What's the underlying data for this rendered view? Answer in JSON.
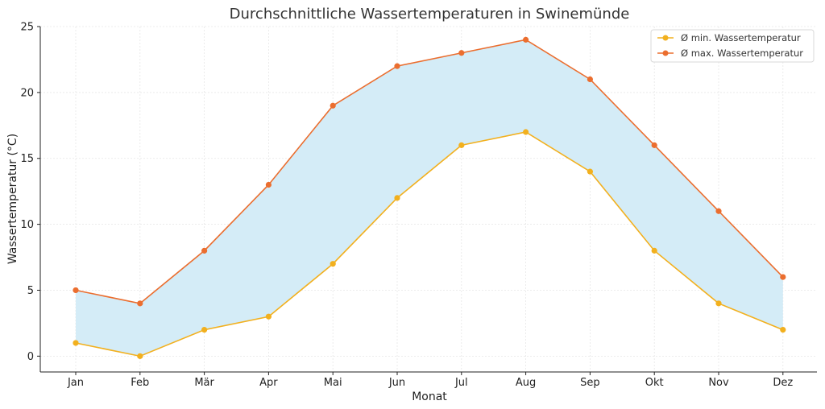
{
  "chart_data": {
    "type": "line",
    "title": "Durchschnittliche Wassertemperaturen in Swinemünde",
    "xlabel": "Monat",
    "ylabel": "Wassertemperatur (°C)",
    "categories": [
      "Jan",
      "Feb",
      "Mär",
      "Apr",
      "Mai",
      "Jun",
      "Jul",
      "Aug",
      "Sep",
      "Okt",
      "Nov",
      "Dez"
    ],
    "series": [
      {
        "name": "Ø min. Wassertemperatur",
        "values": [
          1,
          0,
          2,
          3,
          7,
          12,
          16,
          17,
          14,
          8,
          4,
          2
        ],
        "color": "#f2b01e"
      },
      {
        "name": "Ø max. Wassertemperatur",
        "values": [
          5,
          4,
          8,
          13,
          19,
          22,
          23,
          24,
          21,
          16,
          11,
          6
        ],
        "color": "#eb6e2f"
      }
    ],
    "fill_between": {
      "color": "#d4ecf7"
    },
    "ylim": [
      -1.2,
      25
    ],
    "yticks": [
      0,
      5,
      10,
      15,
      20,
      25
    ],
    "grid": true,
    "legend_position": "top-right"
  }
}
